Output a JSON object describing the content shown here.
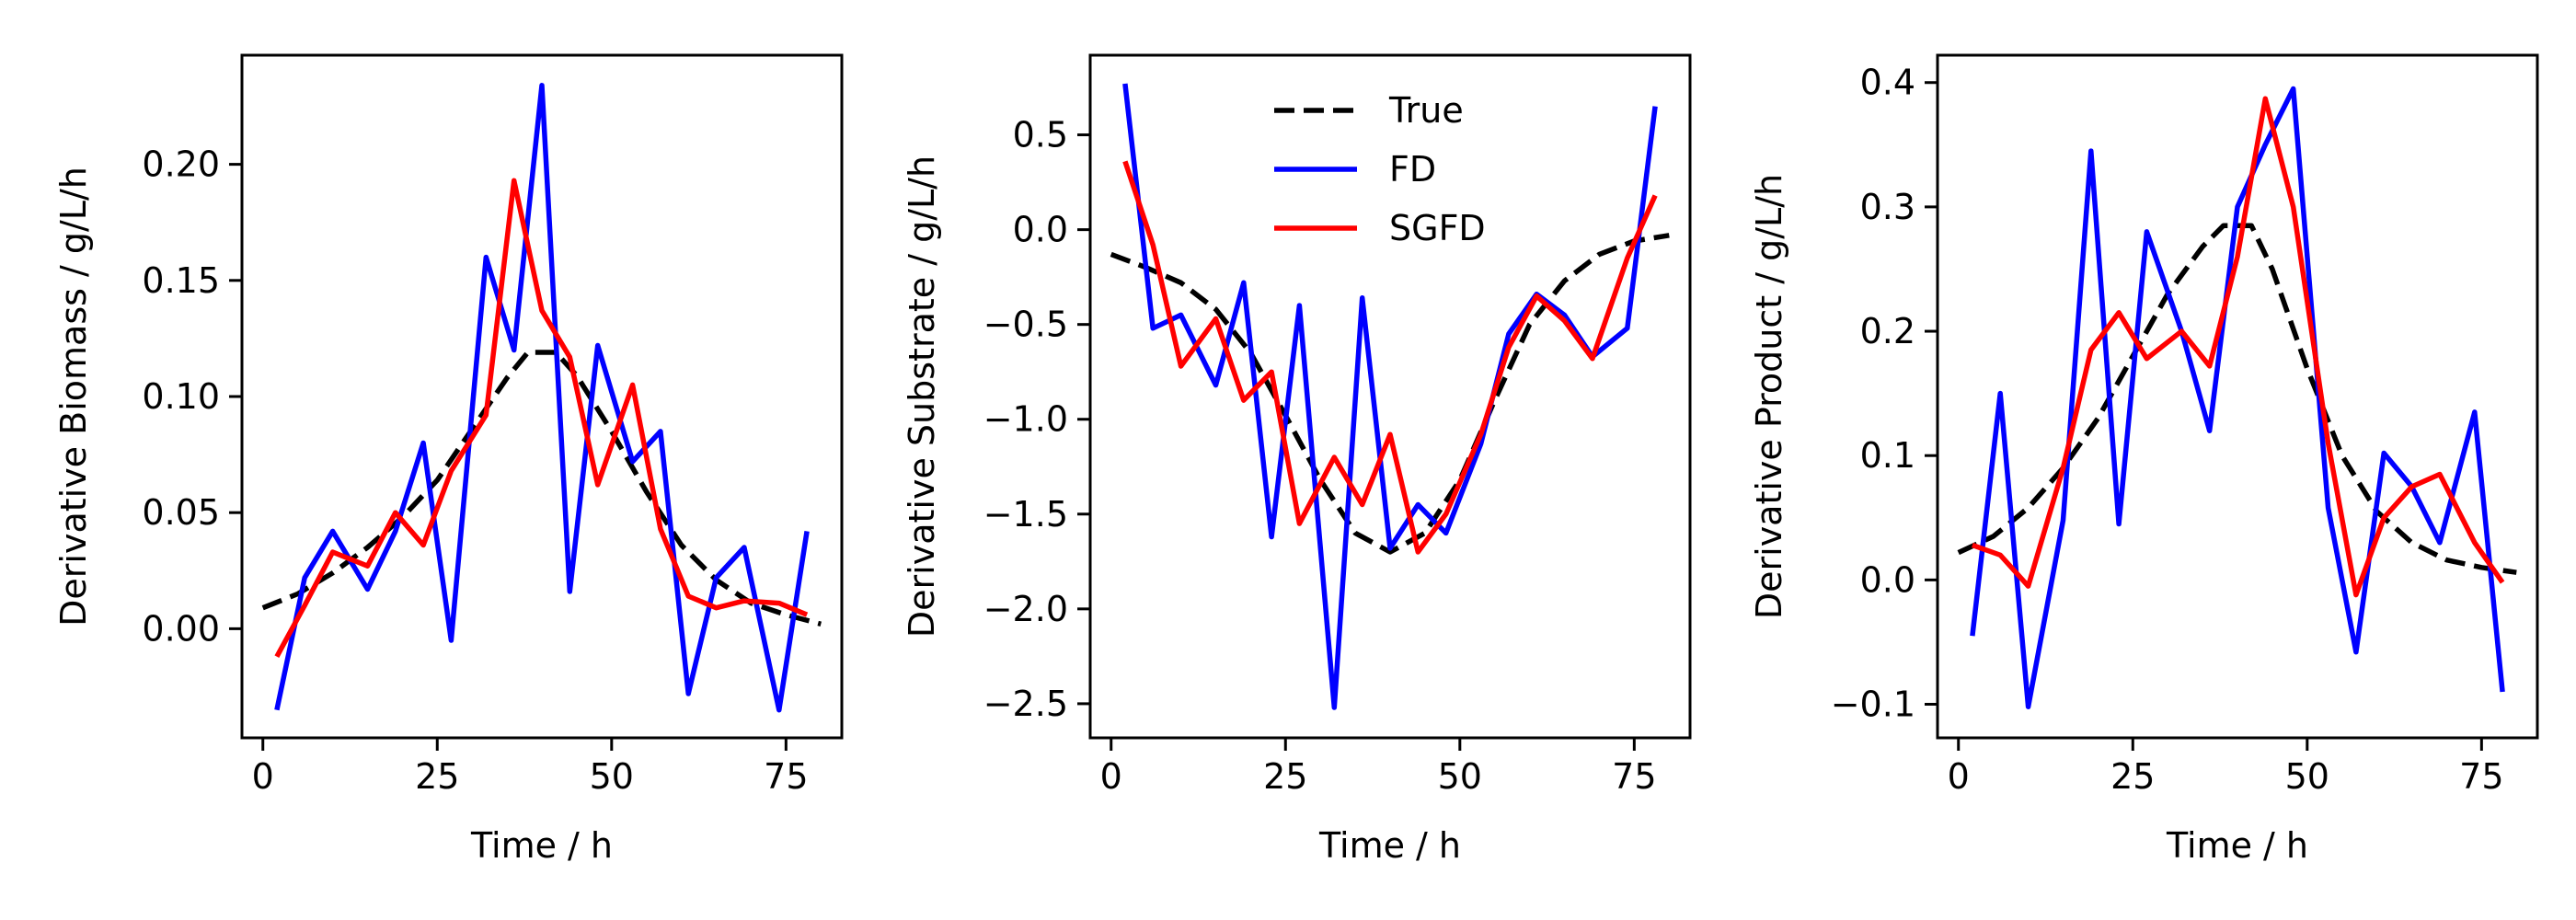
{
  "chart_data": [
    {
      "type": "line",
      "xlabel": "Time / h",
      "ylabel": "Derivative Biomass / g/L/h",
      "xlim": [
        -3,
        83
      ],
      "ylim": [
        -0.047,
        0.247
      ],
      "xticks": [
        0,
        25,
        50,
        75
      ],
      "yticks": [
        0.0,
        0.05,
        0.1,
        0.15,
        0.2
      ],
      "ytick_labels": [
        "0.00",
        "0.05",
        "0.10",
        "0.15",
        "0.20"
      ],
      "series": [
        {
          "key": "true",
          "color": "#000000",
          "dash": true,
          "x": [
            0,
            5,
            10,
            15,
            20,
            25,
            30,
            35,
            38,
            42,
            45,
            50,
            55,
            60,
            65,
            70,
            75,
            80
          ],
          "y": [
            0.009,
            0.015,
            0.024,
            0.035,
            0.048,
            0.064,
            0.086,
            0.108,
            0.119,
            0.119,
            0.109,
            0.085,
            0.059,
            0.036,
            0.021,
            0.011,
            0.006,
            0.002
          ]
        },
        {
          "key": "fd",
          "color": "#0000ff",
          "dash": false,
          "x": [
            2,
            6,
            10,
            15,
            19,
            23,
            27,
            32,
            36,
            40,
            44,
            48,
            53,
            57,
            61,
            65,
            69,
            74,
            78
          ],
          "y": [
            -0.035,
            0.022,
            0.042,
            0.017,
            0.042,
            0.08,
            -0.005,
            0.16,
            0.12,
            0.234,
            0.016,
            0.122,
            0.072,
            0.085,
            -0.028,
            0.022,
            0.035,
            -0.035,
            0.042
          ]
        },
        {
          "key": "sgfd",
          "color": "#ff0000",
          "dash": false,
          "x": [
            2,
            6,
            10,
            15,
            19,
            23,
            27,
            32,
            36,
            40,
            44,
            48,
            53,
            57,
            61,
            65,
            69,
            74,
            78
          ],
          "y": [
            -0.012,
            0.01,
            0.033,
            0.027,
            0.05,
            0.036,
            0.068,
            0.092,
            0.193,
            0.137,
            0.117,
            0.062,
            0.105,
            0.043,
            0.014,
            0.009,
            0.012,
            0.011,
            0.006
          ]
        }
      ]
    },
    {
      "type": "line",
      "xlabel": "Time / h",
      "ylabel": "Derivative Substrate / g/L/h",
      "xlim": [
        -3,
        83
      ],
      "ylim": [
        -2.68,
        0.92
      ],
      "xticks": [
        0,
        25,
        50,
        75
      ],
      "yticks": [
        0.5,
        0.0,
        -0.5,
        -1.0,
        -1.5,
        -2.0,
        -2.5
      ],
      "ytick_labels": [
        "0.5",
        "0.0",
        "−0.5",
        "−1.0",
        "−1.5",
        "−2.0",
        "−2.5"
      ],
      "legend": {
        "position": "upper center",
        "entries": [
          "True",
          "FD",
          "SGFD"
        ]
      },
      "series": [
        {
          "key": "true",
          "name": "True",
          "color": "#000000",
          "dash": true,
          "x": [
            0,
            5,
            10,
            15,
            20,
            25,
            30,
            35,
            40,
            45,
            50,
            55,
            60,
            65,
            70,
            75,
            80
          ],
          "y": [
            -0.13,
            -0.2,
            -0.28,
            -0.42,
            -0.65,
            -0.98,
            -1.32,
            -1.6,
            -1.7,
            -1.6,
            -1.32,
            -0.9,
            -0.5,
            -0.27,
            -0.13,
            -0.06,
            -0.03
          ]
        },
        {
          "key": "fd",
          "name": "FD",
          "color": "#0000ff",
          "dash": false,
          "x": [
            2,
            6,
            10,
            15,
            19,
            23,
            27,
            32,
            36,
            40,
            44,
            48,
            53,
            57,
            61,
            65,
            69,
            74,
            78
          ],
          "y": [
            0.77,
            -0.52,
            -0.45,
            -0.82,
            -0.28,
            -1.62,
            -0.4,
            -2.52,
            -0.36,
            -1.68,
            -1.45,
            -1.6,
            -1.13,
            -0.55,
            -0.34,
            -0.45,
            -0.67,
            -0.52,
            0.65
          ]
        },
        {
          "key": "sgfd",
          "name": "SGFD",
          "color": "#ff0000",
          "dash": false,
          "x": [
            2,
            6,
            10,
            15,
            19,
            23,
            27,
            32,
            36,
            40,
            44,
            48,
            53,
            57,
            61,
            65,
            69,
            74,
            78
          ],
          "y": [
            0.36,
            -0.08,
            -0.72,
            -0.47,
            -0.9,
            -0.75,
            -1.55,
            -1.2,
            -1.45,
            -1.08,
            -1.7,
            -1.5,
            -1.08,
            -0.62,
            -0.35,
            -0.48,
            -0.68,
            -0.15,
            0.18
          ]
        }
      ]
    },
    {
      "type": "line",
      "xlabel": "Time / h",
      "ylabel": "Derivative Product / g/L/h",
      "xlim": [
        -3,
        83
      ],
      "ylim": [
        -0.127,
        0.422
      ],
      "xticks": [
        0,
        25,
        50,
        75
      ],
      "yticks": [
        -0.1,
        0.0,
        0.1,
        0.2,
        0.3,
        0.4
      ],
      "ytick_labels": [
        "−0.1",
        "0.0",
        "0.1",
        "0.2",
        "0.3",
        "0.4"
      ],
      "series": [
        {
          "key": "true",
          "color": "#000000",
          "dash": true,
          "x": [
            0,
            5,
            10,
            15,
            20,
            25,
            30,
            35,
            38,
            42,
            45,
            50,
            55,
            60,
            65,
            70,
            75,
            80
          ],
          "y": [
            0.022,
            0.035,
            0.058,
            0.09,
            0.13,
            0.18,
            0.23,
            0.268,
            0.285,
            0.285,
            0.25,
            0.17,
            0.1,
            0.055,
            0.03,
            0.016,
            0.01,
            0.006
          ]
        },
        {
          "key": "fd",
          "color": "#0000ff",
          "dash": false,
          "x": [
            2,
            6,
            10,
            15,
            19,
            23,
            27,
            32,
            36,
            40,
            44,
            48,
            53,
            57,
            61,
            65,
            69,
            74,
            78
          ],
          "y": [
            -0.045,
            0.15,
            -0.102,
            0.048,
            0.345,
            0.045,
            0.28,
            0.2,
            0.12,
            0.3,
            0.35,
            0.395,
            0.058,
            -0.058,
            0.102,
            0.075,
            0.03,
            0.135,
            -0.09
          ]
        },
        {
          "key": "sgfd",
          "color": "#ff0000",
          "dash": false,
          "x": [
            2,
            6,
            10,
            15,
            19,
            23,
            27,
            32,
            36,
            40,
            44,
            48,
            53,
            57,
            61,
            65,
            69,
            74,
            78
          ],
          "y": [
            0.028,
            0.02,
            -0.005,
            0.09,
            0.185,
            0.215,
            0.178,
            0.2,
            0.172,
            0.26,
            0.387,
            0.3,
            0.11,
            -0.012,
            0.05,
            0.075,
            0.085,
            0.03,
            -0.002
          ]
        }
      ]
    }
  ]
}
